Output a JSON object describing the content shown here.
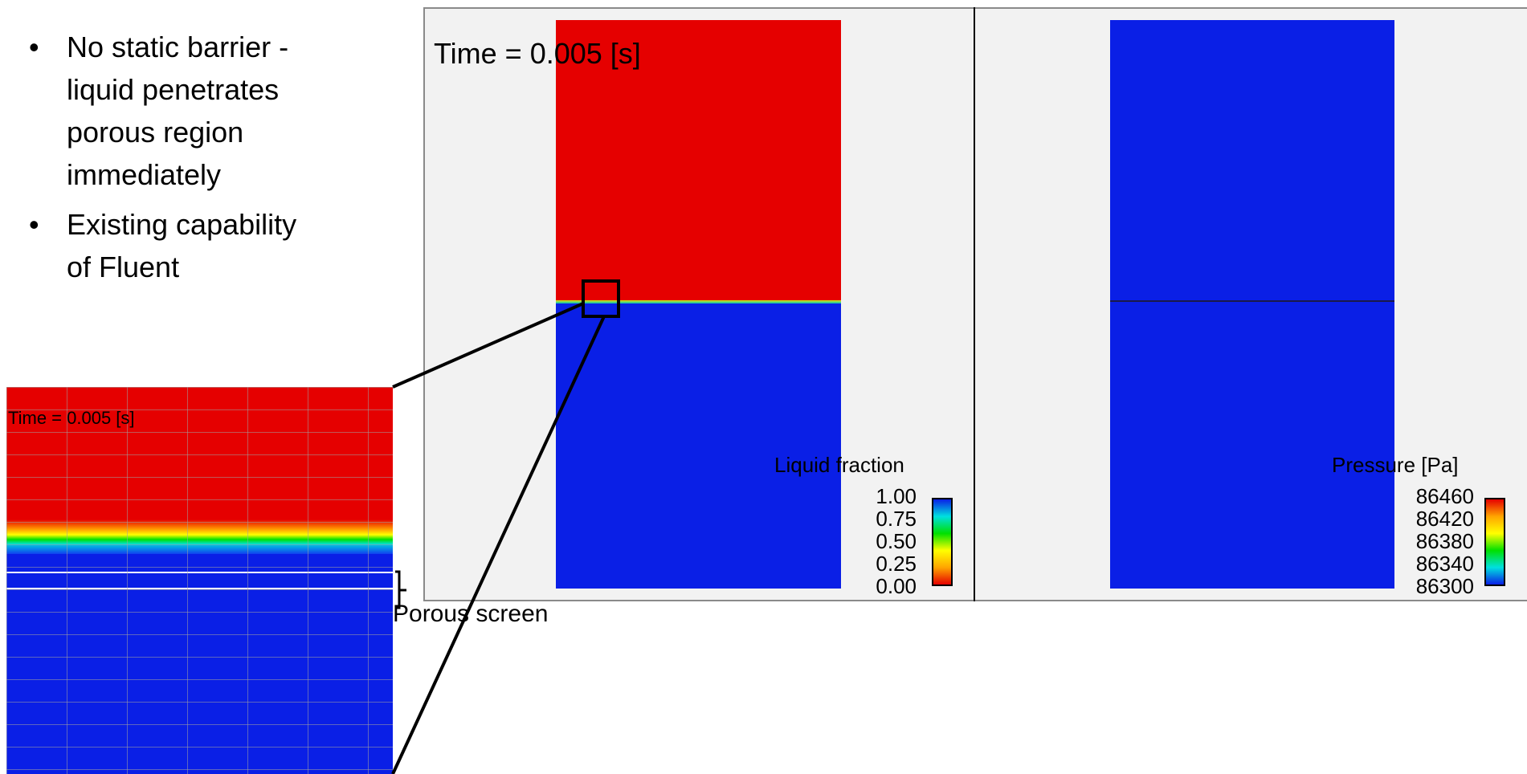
{
  "bullets": [
    {
      "lines": [
        "No static barrier -",
        "liquid penetrates",
        "porous region",
        "immediately"
      ]
    },
    {
      "lines": [
        "Existing capability",
        "of Fluent"
      ]
    }
  ],
  "bullet_glyph": "•",
  "main_time_label": "Time = 0.005 [s]",
  "inset_time_label": "Time = 0.005 [s]",
  "porous_label": "Porous screen",
  "liquid_legend": {
    "title": "Liquid fraction",
    "ticks": [
      "1.00",
      "0.75",
      "0.50",
      "0.25",
      "0.00"
    ]
  },
  "pressure_legend": {
    "title": "Pressure [Pa]",
    "ticks": [
      "86460",
      "86420",
      "86380",
      "86340",
      "86300"
    ]
  },
  "colors": {
    "liquid": "#e50000",
    "gas": "#0a1fe6",
    "background": "#f2f2f2"
  }
}
